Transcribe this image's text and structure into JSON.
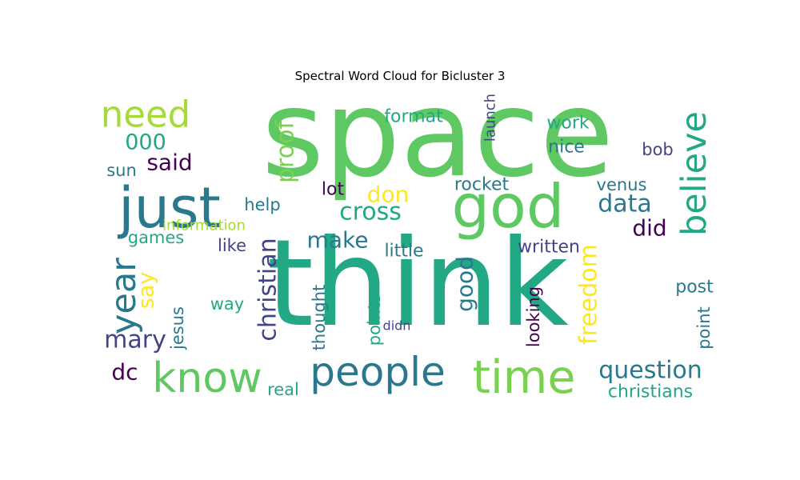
{
  "chart_data": {
    "type": "wordcloud",
    "title": "Spectral Word Cloud for Bicluster 3",
    "colormap": "viridis",
    "words": [
      {
        "text": "space",
        "weight": 1.0,
        "color": "#5ec962"
      },
      {
        "text": "think",
        "weight": 0.98,
        "color": "#22a884"
      },
      {
        "text": "god",
        "weight": 0.62,
        "color": "#5ec962"
      },
      {
        "text": "just",
        "weight": 0.52,
        "color": "#2a788e"
      },
      {
        "text": "time",
        "weight": 0.42,
        "color": "#7ad151"
      },
      {
        "text": "know",
        "weight": 0.4,
        "color": "#5ec962"
      },
      {
        "text": "people",
        "weight": 0.4,
        "color": "#2a788e"
      },
      {
        "text": "believe",
        "weight": 0.34,
        "color": "#22a884"
      },
      {
        "text": "need",
        "weight": 0.32,
        "color": "#a5db36"
      },
      {
        "text": "year",
        "weight": 0.3,
        "color": "#2a788e"
      },
      {
        "text": "christian",
        "weight": 0.24,
        "color": "#414487"
      },
      {
        "text": "question",
        "weight": 0.22,
        "color": "#2a788e"
      },
      {
        "text": "proof",
        "weight": 0.2,
        "color": "#7ad151"
      },
      {
        "text": "cross",
        "weight": 0.2,
        "color": "#22a884"
      },
      {
        "text": "data",
        "weight": 0.2,
        "color": "#2a788e"
      },
      {
        "text": "mary",
        "weight": 0.2,
        "color": "#414487"
      },
      {
        "text": "freedom",
        "weight": 0.2,
        "color": "#fde725"
      },
      {
        "text": "good",
        "weight": 0.19,
        "color": "#2a788e"
      },
      {
        "text": "christians",
        "weight": 0.17,
        "color": "#22a884"
      },
      {
        "text": "dc",
        "weight": 0.19,
        "color": "#440154"
      },
      {
        "text": "did",
        "weight": 0.19,
        "color": "#440154"
      },
      {
        "text": "don",
        "weight": 0.19,
        "color": "#fde725"
      },
      {
        "text": "make",
        "weight": 0.18,
        "color": "#2a788e"
      },
      {
        "text": "000",
        "weight": 0.18,
        "color": "#22a884"
      },
      {
        "text": "said",
        "weight": 0.18,
        "color": "#440154"
      },
      {
        "text": "say",
        "weight": 0.17,
        "color": "#fde725"
      },
      {
        "text": "format",
        "weight": 0.15,
        "color": "#22a884"
      },
      {
        "text": "rocket",
        "weight": 0.15,
        "color": "#2a788e"
      },
      {
        "text": "work",
        "weight": 0.15,
        "color": "#22a884"
      },
      {
        "text": "nice",
        "weight": 0.14,
        "color": "#2a788e"
      },
      {
        "text": "written",
        "weight": 0.14,
        "color": "#414487"
      },
      {
        "text": "little",
        "weight": 0.14,
        "color": "#2a788e"
      },
      {
        "text": "post",
        "weight": 0.14,
        "color": "#2a788e"
      },
      {
        "text": "real",
        "weight": 0.14,
        "color": "#22a884"
      },
      {
        "text": "lot",
        "weight": 0.13,
        "color": "#440154"
      },
      {
        "text": "help",
        "weight": 0.13,
        "color": "#2a788e"
      },
      {
        "text": "venus",
        "weight": 0.13,
        "color": "#2a788e"
      },
      {
        "text": "bob",
        "weight": 0.13,
        "color": "#414487"
      },
      {
        "text": "games",
        "weight": 0.13,
        "color": "#22a884"
      },
      {
        "text": "like",
        "weight": 0.13,
        "color": "#414487"
      },
      {
        "text": "way",
        "weight": 0.13,
        "color": "#22a884"
      },
      {
        "text": "sun",
        "weight": 0.12,
        "color": "#2a788e"
      },
      {
        "text": "thought",
        "weight": 0.12,
        "color": "#2a788e"
      },
      {
        "text": "jesus",
        "weight": 0.12,
        "color": "#2a788e"
      },
      {
        "text": "looking",
        "weight": 0.12,
        "color": "#440154"
      },
      {
        "text": "points",
        "weight": 0.12,
        "color": "#22a884"
      },
      {
        "text": "point",
        "weight": 0.12,
        "color": "#2a788e"
      },
      {
        "text": "information",
        "weight": 0.11,
        "color": "#a5db36"
      },
      {
        "text": "launch",
        "weight": 0.11,
        "color": "#414487"
      },
      {
        "text": "didn",
        "weight": 0.1,
        "color": "#414487"
      }
    ]
  }
}
